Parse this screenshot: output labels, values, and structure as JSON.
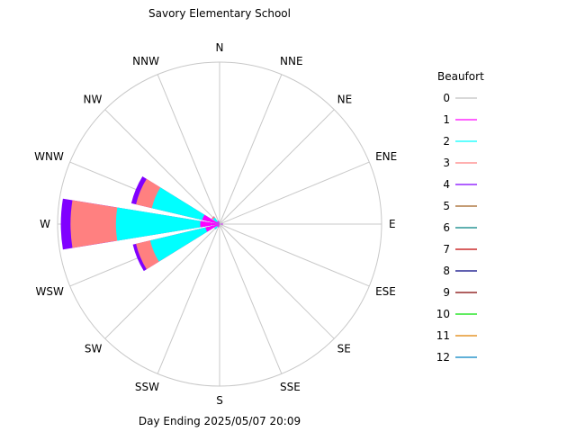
{
  "chart_data": {
    "type": "wind-rose",
    "title": "Savory Elementary School",
    "subtitle": "Day Ending 2025/05/07 20:09",
    "directions": [
      "N",
      "NNE",
      "NE",
      "ENE",
      "E",
      "ESE",
      "SE",
      "SSE",
      "S",
      "SSW",
      "SW",
      "WSW",
      "W",
      "WNW",
      "NW",
      "NNW"
    ],
    "legend": {
      "title": "Beaufort",
      "placement": "right",
      "entries": [
        {
          "label": "0",
          "color": "#c0c0c0"
        },
        {
          "label": "1",
          "color": "#ff00ff"
        },
        {
          "label": "2",
          "color": "#00ffff"
        },
        {
          "label": "3",
          "color": "#ff8080"
        },
        {
          "label": "4",
          "color": "#8000ff"
        },
        {
          "label": "5",
          "color": "#a06020"
        },
        {
          "label": "6",
          "color": "#008080"
        },
        {
          "label": "7",
          "color": "#c00000"
        },
        {
          "label": "8",
          "color": "#000080"
        },
        {
          "label": "9",
          "color": "#800000"
        },
        {
          "label": "10",
          "color": "#00e000"
        },
        {
          "label": "11",
          "color": "#e08000"
        },
        {
          "label": "12",
          "color": "#0080c0"
        }
      ]
    },
    "note": "values are cumulative fraction of the rose radius per Beaufort class",
    "series": [
      {
        "direction": "E",
        "values": [
          0,
          0.02,
          0.02,
          0.02,
          0.02
        ]
      },
      {
        "direction": "SSW",
        "values": [
          0,
          0.02,
          0.02,
          0.02,
          0.02
        ]
      },
      {
        "direction": "SW",
        "values": [
          0,
          0.02,
          0.04,
          0.04,
          0.04
        ]
      },
      {
        "direction": "WSW",
        "values": [
          0,
          0.09,
          0.44,
          0.53,
          0.55
        ]
      },
      {
        "direction": "W",
        "values": [
          0,
          0.12,
          0.64,
          0.92,
          0.98
        ]
      },
      {
        "direction": "WNW",
        "values": [
          0,
          0.11,
          0.43,
          0.53,
          0.56
        ]
      },
      {
        "direction": "NW",
        "values": [
          0,
          0.02,
          0.05,
          0.06,
          0.06
        ]
      },
      {
        "direction": "NNW",
        "values": [
          0,
          0.02,
          0.02,
          0.02,
          0.02
        ]
      }
    ]
  }
}
